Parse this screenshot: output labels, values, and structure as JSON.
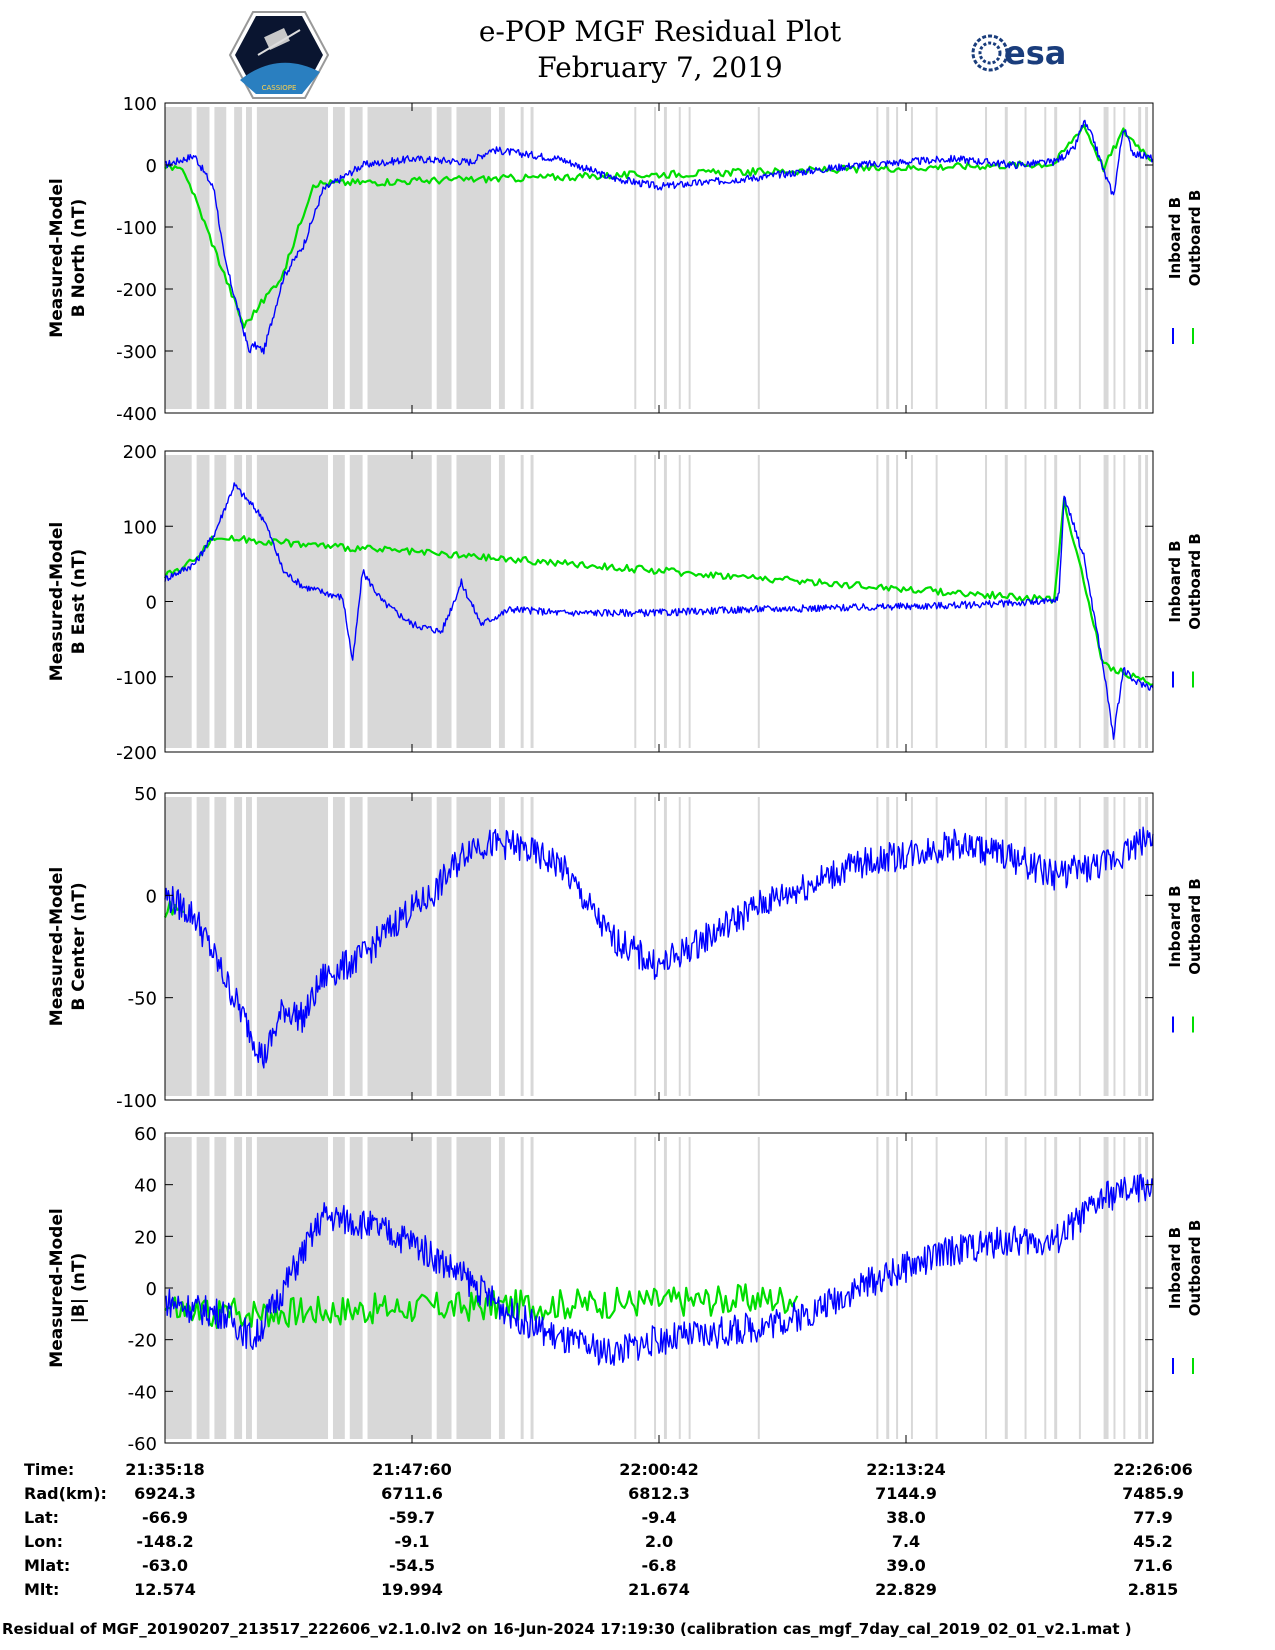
{
  "header": {
    "title_line1": "e-POP MGF Residual Plot",
    "title_line2": "February 7, 2019",
    "logo_left_text": "CASSIOPE",
    "logo_right_text": "esa"
  },
  "legend": {
    "inboard": "Inboard B",
    "outboard": "Outboard B",
    "inboard_color": "#0000ff",
    "outboard_color": "#00dd00"
  },
  "chart_data": [
    {
      "type": "line",
      "ylabel_line1": "Measured-Model",
      "ylabel_line2": "B North (nT)",
      "ylim": [
        -400,
        100
      ],
      "yticks": [
        "100",
        "0",
        "-100",
        "-200",
        "-300",
        "-400"
      ],
      "series": [
        {
          "name": "Inboard B",
          "x": [
            0,
            0.01,
            0.03,
            0.05,
            0.06,
            0.08,
            0.085,
            0.09,
            0.1,
            0.12,
            0.14,
            0.16,
            0.2,
            0.25,
            0.31,
            0.33,
            0.4,
            0.45,
            0.5,
            0.6,
            0.7,
            0.8,
            0.86,
            0.9,
            0.92,
            0.93,
            0.94,
            0.95,
            0.96,
            0.97,
            0.98,
            1.0
          ],
          "y": [
            0,
            5,
            15,
            -40,
            -150,
            -270,
            -300,
            -290,
            -300,
            -180,
            -130,
            -40,
            0,
            10,
            5,
            25,
            10,
            -20,
            -35,
            -20,
            0,
            10,
            0,
            5,
            25,
            70,
            40,
            -10,
            -50,
            60,
            20,
            10
          ]
        },
        {
          "name": "Outboard B",
          "x": [
            0,
            0.02,
            0.08,
            0.12,
            0.15,
            0.9,
            0.93,
            0.95,
            0.97,
            1.0
          ],
          "y": [
            -5,
            -10,
            -260,
            -175,
            -30,
            2,
            65,
            -5,
            55,
            8
          ]
        }
      ]
    },
    {
      "type": "line",
      "ylabel_line1": "Measured-Model",
      "ylabel_line2": "B East (nT)",
      "ylim": [
        -200,
        200
      ],
      "yticks": [
        "200",
        "100",
        "0",
        "-100",
        "-200"
      ],
      "series": [
        {
          "name": "Inboard B",
          "x": [
            0,
            0.03,
            0.05,
            0.07,
            0.1,
            0.12,
            0.14,
            0.18,
            0.19,
            0.2,
            0.22,
            0.25,
            0.28,
            0.3,
            0.32,
            0.35,
            0.4,
            0.5,
            0.6,
            0.7,
            0.8,
            0.9,
            0.905,
            0.91,
            0.93,
            0.95,
            0.96,
            0.97,
            0.98,
            1.0
          ],
          "y": [
            30,
            50,
            90,
            155,
            110,
            40,
            20,
            5,
            -80,
            40,
            0,
            -30,
            -40,
            25,
            -30,
            -10,
            -15,
            -15,
            -10,
            -8,
            -5,
            0,
            10,
            140,
            60,
            -90,
            -180,
            -90,
            -105,
            -115
          ]
        },
        {
          "name": "Outboard B",
          "x": [
            0,
            0.02,
            0.05,
            0.9,
            0.91,
            0.95,
            1.0
          ],
          "y": [
            35,
            45,
            85,
            2,
            135,
            -85,
            -110
          ]
        }
      ]
    },
    {
      "type": "line",
      "ylabel_line1": "Measured-Model",
      "ylabel_line2": "B Center (nT)",
      "ylim": [
        -100,
        50
      ],
      "yticks": [
        "50",
        "0",
        "-50",
        "-100"
      ],
      "series": [
        {
          "name": "Inboard B",
          "x": [
            0,
            0.03,
            0.06,
            0.1,
            0.12,
            0.14,
            0.16,
            0.2,
            0.24,
            0.27,
            0.31,
            0.35,
            0.4,
            0.45,
            0.5,
            0.55,
            0.6,
            0.65,
            0.7,
            0.75,
            0.8,
            0.85,
            0.9,
            0.95,
            1.0
          ],
          "y": [
            0,
            -10,
            -40,
            -80,
            -55,
            -60,
            -40,
            -30,
            -10,
            0,
            25,
            25,
            15,
            -20,
            -35,
            -20,
            -5,
            5,
            15,
            20,
            25,
            20,
            10,
            15,
            30
          ]
        },
        {
          "name": "Outboard B",
          "x": [
            0,
            0.02
          ],
          "y": [
            -5,
            -8
          ]
        }
      ]
    },
    {
      "type": "line",
      "ylabel_line1": "Measured-Model",
      "ylabel_line2": "|B| (nT)",
      "ylim": [
        -60,
        60
      ],
      "yticks": [
        "60",
        "40",
        "20",
        "0",
        "-20",
        "-40",
        "-60"
      ],
      "series": [
        {
          "name": "Inboard B",
          "x": [
            0,
            0.03,
            0.06,
            0.09,
            0.12,
            0.16,
            0.2,
            0.25,
            0.3,
            0.35,
            0.4,
            0.45,
            0.5,
            0.55,
            0.6,
            0.65,
            0.7,
            0.75,
            0.8,
            0.85,
            0.9,
            0.95,
            1.0
          ],
          "y": [
            -5,
            -8,
            -10,
            -20,
            0,
            28,
            25,
            18,
            5,
            -10,
            -20,
            -25,
            -20,
            -18,
            -15,
            -10,
            0,
            8,
            15,
            18,
            18,
            35,
            40
          ]
        },
        {
          "name": "Outboard B",
          "x": [
            0,
            0.02,
            0.63,
            0.64
          ],
          "y": [
            -8,
            -10,
            -4,
            -3
          ]
        }
      ]
    }
  ],
  "time_axis": {
    "labels": [
      "Time:",
      "Rad(km):",
      "Lat:",
      "Lon:",
      "Mlat:",
      "Mlt:"
    ],
    "columns": [
      {
        "time": "21:35:18",
        "rad": "6924.3",
        "lat": "-66.9",
        "lon": "-148.2",
        "mlat": "-63.0",
        "mlt": "12.574"
      },
      {
        "time": "21:47:60",
        "rad": "6711.6",
        "lat": "-59.7",
        "lon": "-9.1",
        "mlat": "-54.5",
        "mlt": "19.994"
      },
      {
        "time": "22:00:42",
        "rad": "6812.3",
        "lat": "-9.4",
        "lon": "2.0",
        "mlat": "-6.8",
        "mlt": "21.674"
      },
      {
        "time": "22:13:24",
        "rad": "7144.9",
        "lat": "38.0",
        "lon": "7.4",
        "mlat": "39.0",
        "mlt": "22.829"
      },
      {
        "time": "22:26:06",
        "rad": "7485.9",
        "lat": "77.9",
        "lon": "45.2",
        "mlat": "71.6",
        "mlt": "2.815"
      }
    ]
  },
  "footer": "Residual of MGF_20190207_213517_222606_v2.1.0.lv2 on 16-Jun-2024 17:19:30 (calibration cas_mgf_7day_cal_2019_02_01_v2.1.mat )"
}
